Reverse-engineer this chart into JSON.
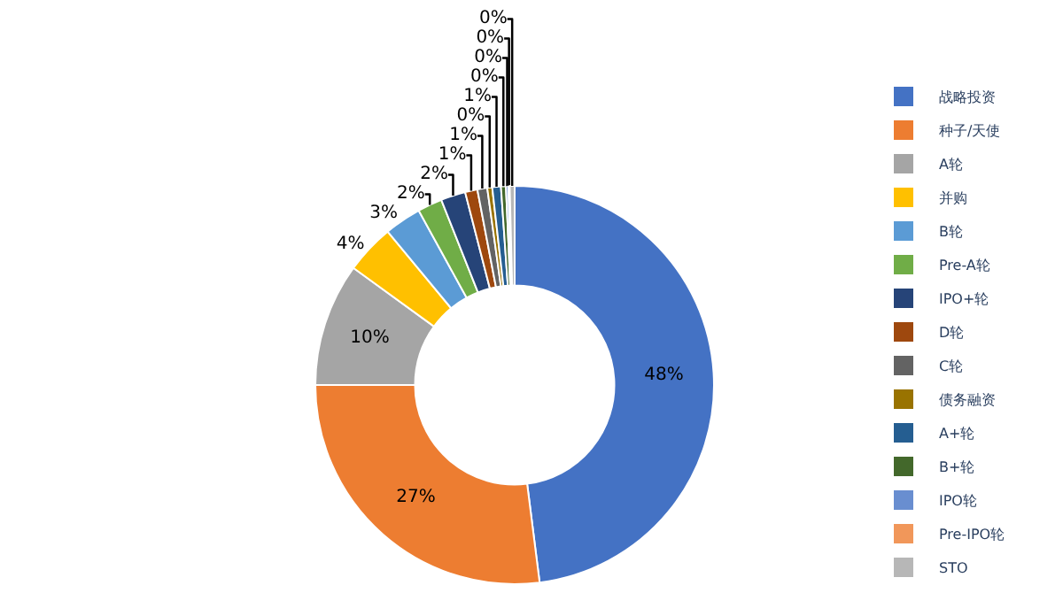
{
  "chart_data": {
    "type": "donut",
    "categories": [
      "战略投资",
      "种子/天使",
      "A轮",
      "并购",
      "B轮",
      "Pre-A轮",
      "IPO+轮",
      "D轮",
      "C轮",
      "债务融资",
      "A+轮",
      "B+轮",
      "IPO轮",
      "Pre-IPO轮",
      "STO"
    ],
    "values": [
      48,
      27,
      10,
      4,
      3,
      2,
      2,
      1,
      0.8,
      0.4,
      0.7,
      0.4,
      0.2,
      0.1,
      0.4
    ],
    "value_labels": [
      "48%",
      "27%",
      "10%",
      "4%",
      "3%",
      "2%",
      "2%",
      "1%",
      "1%",
      "0%",
      "1%",
      "0%",
      "0%",
      "0%",
      "0%"
    ],
    "colors": [
      "#4472c4",
      "#ed7d31",
      "#a5a5a5",
      "#ffc000",
      "#5b9bd5",
      "#70ad47",
      "#264478",
      "#9e480e",
      "#636363",
      "#997300",
      "#255e91",
      "#43682b",
      "#698ed0",
      "#f1975a",
      "#b7b7b7"
    ],
    "legend": "right"
  }
}
